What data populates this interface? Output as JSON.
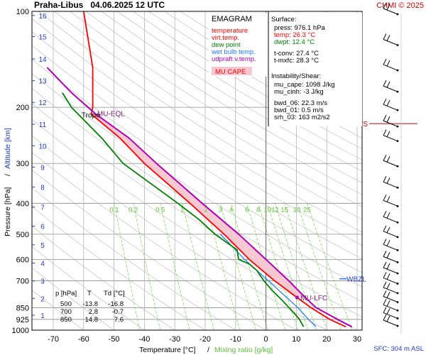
{
  "header": {
    "title": "Praha-Libus   04.06.2025 12 UTC",
    "credit": "CHMI © 2025"
  },
  "legend_box": {
    "title": "EMAGRAM",
    "items": [
      {
        "label": "temperature",
        "color": "#ff0000"
      },
      {
        "label": "virt.temp.",
        "color": "#ff0000"
      },
      {
        "label": "dew point",
        "color": "#008000"
      },
      {
        "label": "wet bulb temp.",
        "color": "#1e78ff"
      },
      {
        "label": "udpraft v.temp.",
        "color": "#b400b4"
      }
    ],
    "mu_cape_label": "MU CAPE"
  },
  "info_panel": {
    "surface_title": "Surface:",
    "surface": [
      "press: 976.1 hPa",
      "temp: 26.3 °C",
      "dwpt: 12.4 °C"
    ],
    "surface_colors": [
      "#000000",
      "#ff0000",
      "#008000"
    ],
    "conv": [
      "t-conv: 27.4 °C",
      "t-mxfc: 28.3 °C"
    ],
    "instab_title": "Instability/Shear:",
    "instab": [
      "mu_cape: 1098 J/kg",
      "mu_cinh: -3 J/kg"
    ],
    "shear": [
      "bwd_06: 22.3 m/s",
      "bwd_01: 0.5 m/s",
      "srh_03: 163 m2/s2"
    ]
  },
  "table": {
    "headers": [
      "p [hPa]",
      "T",
      "Td [°C]"
    ],
    "rows": [
      [
        "500",
        "-13.8",
        "-16.8"
      ],
      [
        "700",
        "2.8",
        "-0.7"
      ],
      [
        "850",
        "14.8",
        "7.6"
      ]
    ]
  },
  "annotations": {
    "tropo": "Tropo",
    "mu_eql": "MU-EQL",
    "mu_lfc": "MU-LFC",
    "wbzl": "WBZL",
    "mxws": "MXWS",
    "sfc": "SFC: 304 m ASL"
  },
  "colors": {
    "temperature": "#ff0000",
    "dewpoint": "#008000",
    "wetbulb": "#1e78ff",
    "parcel": "#b400b4",
    "cape_fill": "#f5c8d2",
    "mixing_ratio": "#7fdc50",
    "altitude": "#1e3cc8",
    "grid": "#aaaaaa"
  },
  "chart_data": {
    "type": "line",
    "title": "Praha-Libus   04.06.2025 12 UTC",
    "xlabel": "Temperature [°C]",
    "xlabel2": "Mixing ratio [g/kg]",
    "ylabel": "Pressure [hPa]",
    "ylabel2": "Altitude [km]",
    "xlim": [
      -80,
      30
    ],
    "ylim": [
      1000,
      100
    ],
    "x_ticks": [
      -70,
      -60,
      -50,
      -40,
      -30,
      -20,
      -10,
      0,
      10,
      20,
      30
    ],
    "pressure_ticks": [
      100,
      200,
      300,
      400,
      500,
      600,
      700,
      850,
      925,
      1000
    ],
    "altitude_km_ticks": [
      1,
      2,
      3,
      4,
      5,
      6,
      7,
      8,
      9,
      10,
      11,
      12,
      13,
      14,
      15,
      16
    ],
    "mixing_ratio_labels": [
      "0.1",
      "0.2",
      "0.5",
      "1",
      "2",
      "3",
      "4",
      "6",
      "8",
      "10",
      "12",
      "15",
      "20",
      "25"
    ],
    "series": [
      {
        "name": "temperature",
        "points": [
          [
            976,
            26.3
          ],
          [
            925,
            21.0
          ],
          [
            850,
            14.8
          ],
          [
            800,
            11.0
          ],
          [
            700,
            2.8
          ],
          [
            600,
            -5.5
          ],
          [
            500,
            -13.8
          ],
          [
            400,
            -25.0
          ],
          [
            300,
            -40.0
          ],
          [
            250,
            -48.0
          ],
          [
            210,
            -57.5
          ],
          [
            200,
            -57.0
          ],
          [
            150,
            -57.0
          ],
          [
            100,
            -60.0
          ]
        ]
      },
      {
        "name": "dew point",
        "points": [
          [
            976,
            12.4
          ],
          [
            925,
            11.0
          ],
          [
            900,
            10.0
          ],
          [
            850,
            7.6
          ],
          [
            800,
            5.0
          ],
          [
            750,
            2.0
          ],
          [
            700,
            -0.7
          ],
          [
            650,
            -3.0
          ],
          [
            620,
            -5.5
          ],
          [
            600,
            -9.0
          ],
          [
            560,
            -9.5
          ],
          [
            500,
            -16.8
          ],
          [
            450,
            -22.0
          ],
          [
            400,
            -29.0
          ],
          [
            300,
            -47.0
          ],
          [
            250,
            -54.0
          ],
          [
            200,
            -64.0
          ],
          [
            180,
            -67.0
          ]
        ]
      },
      {
        "name": "wet bulb temp.",
        "points": [
          [
            976,
            16.5
          ],
          [
            925,
            14.0
          ],
          [
            850,
            10.5
          ],
          [
            700,
            0.8
          ],
          [
            600,
            -7.0
          ],
          [
            500,
            -15.0
          ]
        ]
      },
      {
        "name": "udpraft v.temp.",
        "points": [
          [
            976,
            28.3
          ],
          [
            925,
            23.5
          ],
          [
            850,
            16.5
          ],
          [
            800,
            13.5
          ],
          [
            700,
            7.5
          ],
          [
            600,
            0.0
          ],
          [
            500,
            -9.0
          ],
          [
            400,
            -21.0
          ],
          [
            300,
            -36.0
          ],
          [
            250,
            -45.0
          ],
          [
            210,
            -56.0
          ],
          [
            180,
            -64.0
          ],
          [
            150,
            -72.0
          ]
        ]
      }
    ],
    "mxws_pressure": 225,
    "wbzl_pressure": 690,
    "mu_lfc_pressure": 790,
    "mu_eql_pressure": 210,
    "tropo_pressure": 210
  }
}
